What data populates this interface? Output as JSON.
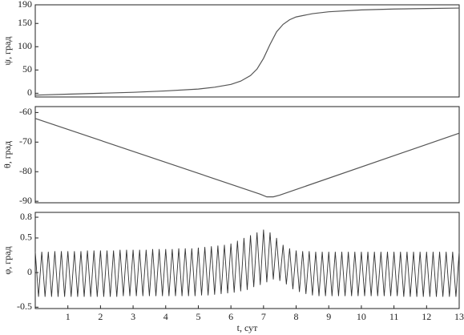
{
  "chart_data": [
    {
      "type": "line",
      "ylabel": "ψ, град",
      "color": "#555555",
      "xlim": [
        0,
        13
      ],
      "ylim": [
        -8,
        190
      ],
      "yticks": [
        0,
        50,
        100,
        150,
        190
      ],
      "x": [
        0,
        1,
        2,
        3,
        4,
        5,
        5.5,
        6,
        6.3,
        6.6,
        6.8,
        7,
        7.2,
        7.4,
        7.6,
        7.8,
        8,
        8.5,
        9,
        10,
        11,
        12,
        13
      ],
      "values": [
        -4,
        -2,
        0,
        2,
        5,
        9,
        13,
        19,
        26,
        38,
        52,
        75,
        105,
        132,
        148,
        158,
        164,
        171,
        175,
        179,
        181,
        182,
        183
      ]
    },
    {
      "type": "line",
      "ylabel": "θ, град",
      "color": "#555555",
      "xlim": [
        0,
        13
      ],
      "ylim": [
        -90.5,
        -58
      ],
      "yticks": [
        -60,
        -70,
        -80,
        -90
      ],
      "x": [
        0,
        6.9,
        7.1,
        7.3,
        7.5,
        13
      ],
      "values": [
        -62,
        -87.6,
        -88.5,
        -88.5,
        -87.9,
        -67
      ]
    },
    {
      "type": "line",
      "ylabel": "φ, град",
      "xlabel": "t, сут",
      "color": "#333333",
      "xlim": [
        0,
        13
      ],
      "ylim": [
        -0.52,
        0.87
      ],
      "yticks": [
        0.8,
        0.5,
        0,
        -0.5
      ],
      "xticks": [
        1,
        2,
        3,
        4,
        5,
        6,
        7,
        8,
        9,
        10,
        11,
        12,
        13
      ],
      "x": [
        0,
        0.1,
        0.2,
        0.3,
        0.4,
        0.5,
        0.6,
        0.7,
        0.8,
        0.9,
        1,
        1.1,
        1.2,
        1.3,
        1.4,
        1.5,
        1.6,
        1.7,
        1.8,
        1.9,
        2,
        2.1,
        2.2,
        2.3,
        2.4,
        2.5,
        2.6,
        2.7,
        2.8,
        2.9,
        3,
        3.1,
        3.2,
        3.3,
        3.4,
        3.5,
        3.6,
        3.7,
        3.8,
        3.9,
        4,
        4.1,
        4.2,
        4.3,
        4.4,
        4.5,
        4.6,
        4.7,
        4.8,
        4.9,
        5,
        5.1,
        5.2,
        5.3,
        5.4,
        5.5,
        5.6,
        5.7,
        5.8,
        5.9,
        6,
        6.1,
        6.2,
        6.3,
        6.4,
        6.5,
        6.6,
        6.7,
        6.8,
        6.9,
        7,
        7.1,
        7.2,
        7.3,
        7.4,
        7.5,
        7.6,
        7.7,
        7.8,
        7.9,
        8,
        8.1,
        8.2,
        8.3,
        8.4,
        8.5,
        8.6,
        8.7,
        8.8,
        8.9,
        9,
        9.1,
        9.2,
        9.3,
        9.4,
        9.5,
        9.6,
        9.7,
        9.8,
        9.9,
        10,
        10.1,
        10.2,
        10.3,
        10.4,
        10.5,
        10.6,
        10.7,
        10.8,
        10.9,
        11,
        11.1,
        11.2,
        11.3,
        11.4,
        11.5,
        11.6,
        11.7,
        11.8,
        11.9,
        12,
        12.1,
        12.2,
        12.3,
        12.4,
        12.5,
        12.6,
        12.7,
        12.8,
        12.9,
        13
      ],
      "values": [
        0.3,
        -0.35,
        0.3,
        -0.35,
        0.3,
        -0.35,
        0.31,
        -0.35,
        0.31,
        -0.35,
        0.31,
        -0.35,
        0.31,
        -0.35,
        0.31,
        -0.35,
        0.32,
        -0.35,
        0.32,
        -0.35,
        0.32,
        -0.35,
        0.32,
        -0.35,
        0.32,
        -0.35,
        0.33,
        -0.34,
        0.33,
        -0.34,
        0.33,
        -0.34,
        0.33,
        -0.34,
        0.33,
        -0.34,
        0.34,
        -0.34,
        0.34,
        -0.34,
        0.34,
        -0.34,
        0.34,
        -0.34,
        0.35,
        -0.34,
        0.35,
        -0.34,
        0.35,
        -0.34,
        0.36,
        -0.33,
        0.37,
        -0.33,
        0.38,
        -0.32,
        0.39,
        -0.31,
        0.4,
        -0.3,
        0.42,
        -0.29,
        0.46,
        -0.27,
        0.5,
        -0.25,
        0.54,
        -0.21,
        0.58,
        -0.18,
        0.62,
        -0.14,
        0.58,
        -0.1,
        0.5,
        -0.12,
        0.4,
        -0.17,
        0.35,
        -0.24,
        0.32,
        -0.28,
        0.31,
        -0.31,
        0.31,
        -0.33,
        0.3,
        -0.34,
        0.3,
        -0.34,
        0.3,
        -0.34,
        0.3,
        -0.34,
        0.3,
        -0.34,
        0.3,
        -0.34,
        0.3,
        -0.34,
        0.3,
        -0.34,
        0.3,
        -0.34,
        0.3,
        -0.34,
        0.3,
        -0.34,
        0.3,
        -0.34,
        0.3,
        -0.34,
        0.3,
        -0.35,
        0.3,
        -0.35,
        0.3,
        -0.35,
        0.3,
        -0.35,
        0.3,
        -0.35,
        0.3,
        -0.35,
        0.3,
        -0.35,
        0.3,
        -0.35,
        0.3,
        -0.35,
        0.3
      ]
    }
  ]
}
